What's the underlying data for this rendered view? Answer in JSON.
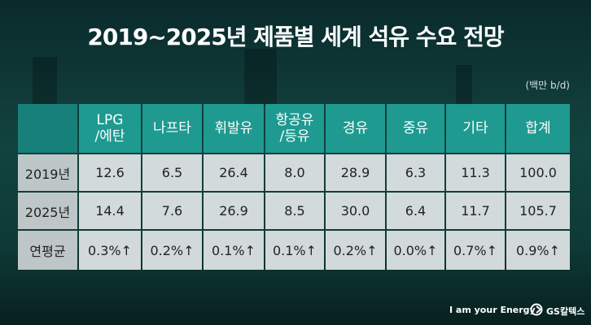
{
  "header": {
    "title": "2019~2025년 제품별 세계 석유 수요 전망",
    "unit": "(백만 b/d)"
  },
  "table": {
    "columns": [
      "",
      "LPG\n/에탄",
      "나프타",
      "휘발유",
      "항공유\n/등유",
      "경유",
      "중유",
      "기타",
      "합계"
    ],
    "rows": [
      [
        "2019년",
        "12.6",
        "6.5",
        "26.4",
        "8.0",
        "28.9",
        "6.3",
        "11.3",
        "100.0"
      ],
      [
        "2025년",
        "14.4",
        "7.6",
        "26.9",
        "8.5",
        "30.0",
        "6.4",
        "11.7",
        "105.7"
      ],
      [
        "연평균",
        "0.3%↑",
        "0.2%↑",
        "0.1%↑",
        "0.1%↑",
        "0.2%↑",
        "0.0%↑",
        "0.7%↑",
        "0.9%↑"
      ]
    ]
  },
  "footer": {
    "slogan": "I am your Energy",
    "brand": "GS칼텍스"
  }
}
